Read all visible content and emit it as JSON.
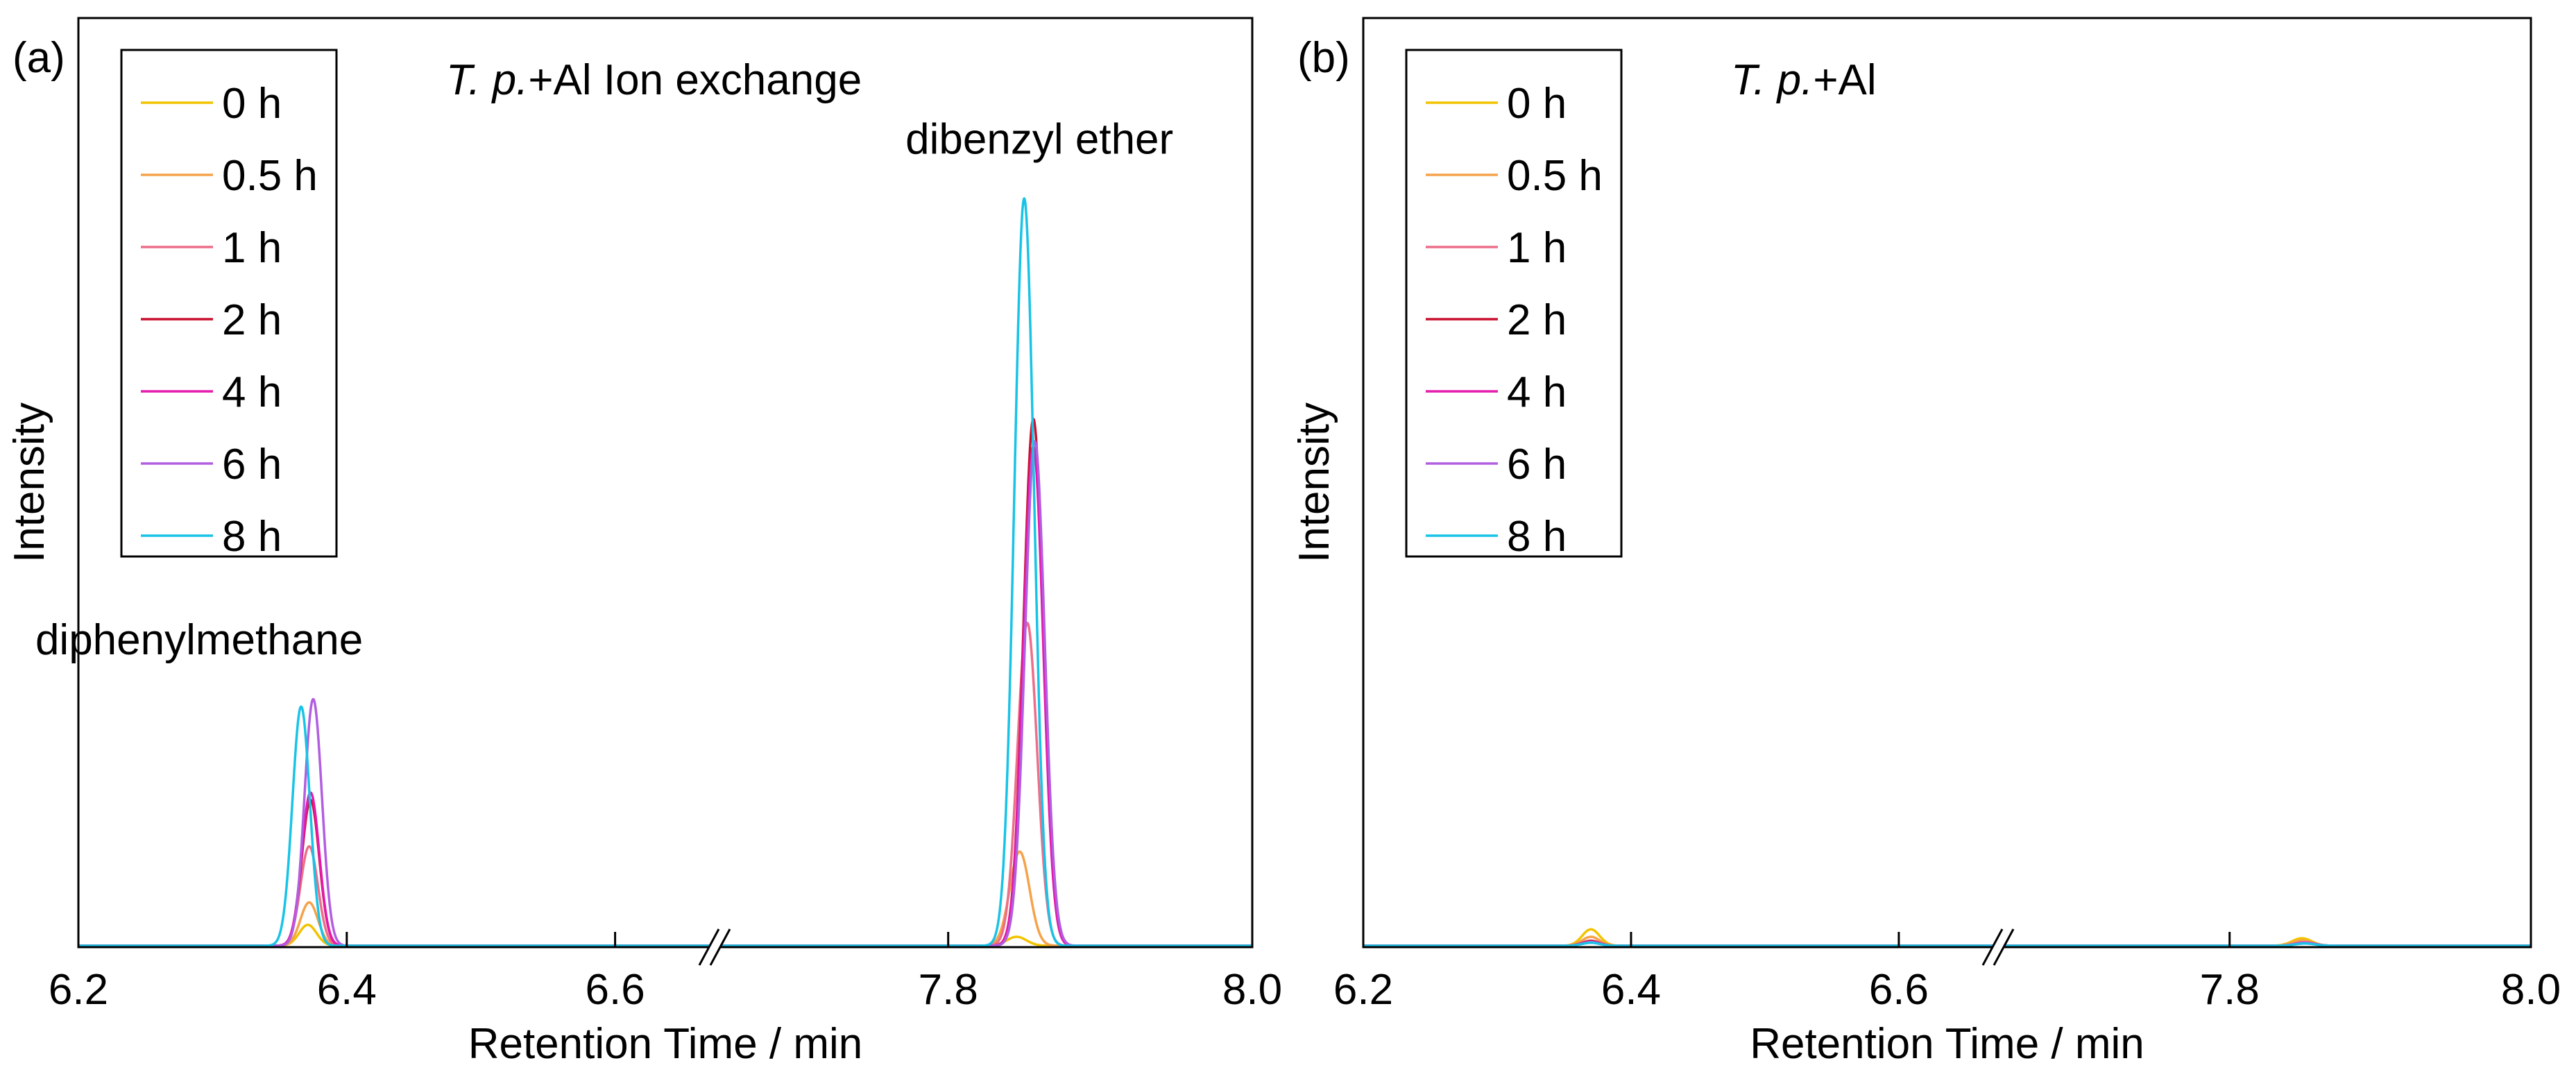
{
  "chart_data": [
    {
      "type": "line",
      "panel_label": "(a)",
      "title_italic": "T. p.",
      "title_rest": "+Al Ion exchange",
      "xlabel": "Retention Time / min",
      "ylabel": "Intensity",
      "axis_break": "between 6.6 and 7.8",
      "segments": [
        {
          "xlim": [
            6.2,
            6.67
          ],
          "ticks": [
            "6.2",
            "6.4",
            "6.6"
          ],
          "tick_values": [
            6.2,
            6.4,
            6.6
          ]
        },
        {
          "xlim": [
            7.65,
            8.0
          ],
          "ticks": [
            "7.8",
            "8.0"
          ],
          "tick_values": [
            7.8,
            8.0
          ]
        }
      ],
      "ylim": [
        0,
        1.0
      ],
      "legend_position": "top-left",
      "annotations": [
        {
          "text": "diphenylmethane",
          "x": 6.29,
          "y": 0.39
        },
        {
          "text": "dibenzyl ether",
          "x": 7.86,
          "y": 1.06
        }
      ],
      "series": [
        {
          "name": "0 h",
          "color": "#f2c300",
          "peaks": [
            {
              "x": 6.371,
              "h": 0.028,
              "w": 0.0065
            },
            {
              "x": 7.845,
              "h": 0.012,
              "w": 0.0065
            }
          ]
        },
        {
          "name": "0.5 h",
          "color": "#f5a24a",
          "peaks": [
            {
              "x": 6.372,
              "h": 0.058,
              "w": 0.0065
            },
            {
              "x": 7.847,
              "h": 0.126,
              "w": 0.0065
            }
          ]
        },
        {
          "name": "1 h",
          "color": "#ec6e8a",
          "peaks": [
            {
              "x": 6.372,
              "h": 0.133,
              "w": 0.0065
            },
            {
              "x": 7.852,
              "h": 0.432,
              "w": 0.0065
            }
          ]
        },
        {
          "name": "2 h",
          "color": "#c8102e",
          "peaks": [
            {
              "x": 6.373,
              "h": 0.195,
              "w": 0.0065
            },
            {
              "x": 7.856,
              "h": 0.705,
              "w": 0.0065
            }
          ]
        },
        {
          "name": "4 h",
          "color": "#e31aac",
          "peaks": [
            {
              "x": 6.373,
              "h": 0.205,
              "w": 0.0065
            },
            {
              "x": 7.856,
              "h": 0.668,
              "w": 0.0065
            }
          ]
        },
        {
          "name": "6 h",
          "color": "#b15ee0",
          "peaks": [
            {
              "x": 6.375,
              "h": 0.33,
              "w": 0.0065
            },
            {
              "x": 7.857,
              "h": 0.675,
              "w": 0.0065
            }
          ]
        },
        {
          "name": "8 h",
          "color": "#18c3e6",
          "peaks": [
            {
              "x": 6.366,
              "h": 0.32,
              "w": 0.0065
            },
            {
              "x": 7.85,
              "h": 1.0,
              "w": 0.0065
            }
          ]
        }
      ]
    },
    {
      "type": "line",
      "panel_label": "(b)",
      "title_italic": "T. p.",
      "title_rest": "+Al",
      "xlabel": "Retention Time / min",
      "ylabel": "Intensity",
      "axis_break": "between 6.6 and 7.8",
      "segments": [
        {
          "xlim": [
            6.2,
            6.67
          ],
          "ticks": [
            "6.2",
            "6.4",
            "6.6"
          ],
          "tick_values": [
            6.2,
            6.4,
            6.6
          ]
        },
        {
          "xlim": [
            7.65,
            8.0
          ],
          "ticks": [
            "7.8",
            "8.0"
          ],
          "tick_values": [
            7.8,
            8.0
          ]
        }
      ],
      "ylim": [
        0,
        1.0
      ],
      "legend_position": "top-left",
      "annotations": [],
      "series": [
        {
          "name": "0 h",
          "color": "#f2c300",
          "peaks": [
            {
              "x": 6.37,
              "h": 0.022,
              "w": 0.0065
            },
            {
              "x": 7.848,
              "h": 0.01,
              "w": 0.0065
            }
          ]
        },
        {
          "name": "0.5 h",
          "color": "#f5a24a",
          "peaks": [
            {
              "x": 6.37,
              "h": 0.012,
              "w": 0.0065
            },
            {
              "x": 7.848,
              "h": 0.007,
              "w": 0.0065
            }
          ]
        },
        {
          "name": "1 h",
          "color": "#ec6e8a",
          "peaks": [
            {
              "x": 6.37,
              "h": 0.007,
              "w": 0.0065
            },
            {
              "x": 7.85,
              "h": 0.005,
              "w": 0.0065
            }
          ]
        },
        {
          "name": "2 h",
          "color": "#c8102e",
          "peaks": [
            {
              "x": 6.37,
              "h": 0.006,
              "w": 0.0065
            },
            {
              "x": 7.85,
              "h": 0.004,
              "w": 0.0065
            }
          ]
        },
        {
          "name": "4 h",
          "color": "#e31aac",
          "peaks": [
            {
              "x": 6.37,
              "h": 0.005,
              "w": 0.0065
            },
            {
              "x": 7.85,
              "h": 0.004,
              "w": 0.0065
            }
          ]
        },
        {
          "name": "6 h",
          "color": "#b15ee0",
          "peaks": [
            {
              "x": 6.37,
              "h": 0.005,
              "w": 0.0065
            },
            {
              "x": 7.85,
              "h": 0.004,
              "w": 0.0065
            }
          ]
        },
        {
          "name": "8 h",
          "color": "#18c3e6",
          "peaks": [
            {
              "x": 6.37,
              "h": 0.004,
              "w": 0.0065
            },
            {
              "x": 7.85,
              "h": 0.003,
              "w": 0.0065
            }
          ]
        }
      ]
    }
  ]
}
